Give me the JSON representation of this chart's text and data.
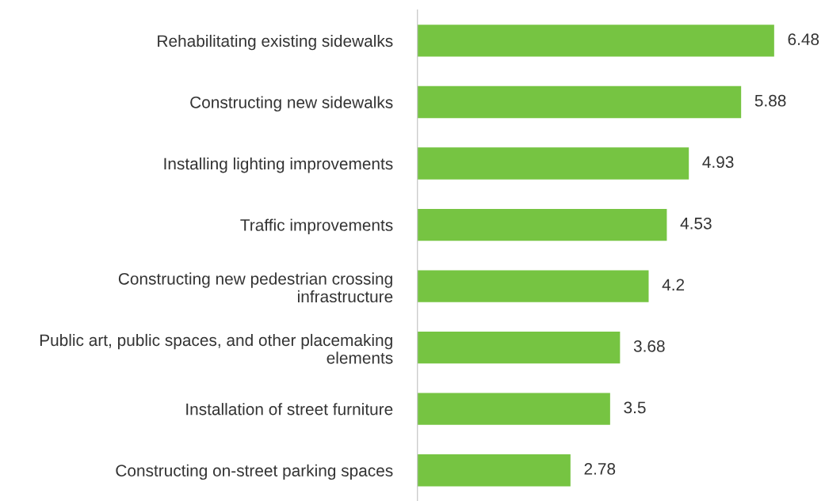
{
  "chart_data": {
    "type": "bar",
    "orientation": "horizontal",
    "categories": [
      "Rehabilitating existing sidewalks",
      "Constructing new sidewalks",
      "Installing lighting improvements",
      "Traffic improvements",
      "Constructing new pedestrian crossing\ninfrastructure",
      "Public art, public spaces, and other placemaking\nelements",
      "Installation of street furniture",
      "Constructing on-street parking spaces"
    ],
    "values": [
      6.48,
      5.88,
      4.93,
      4.53,
      4.2,
      3.68,
      3.5,
      2.78
    ],
    "value_labels": [
      "6.48",
      "5.88",
      "4.93",
      "4.53",
      "4.2",
      "3.68",
      "3.5",
      "2.78"
    ],
    "color": "#76c442",
    "tick_labels": "y",
    "grid": false,
    "legend": false
  }
}
